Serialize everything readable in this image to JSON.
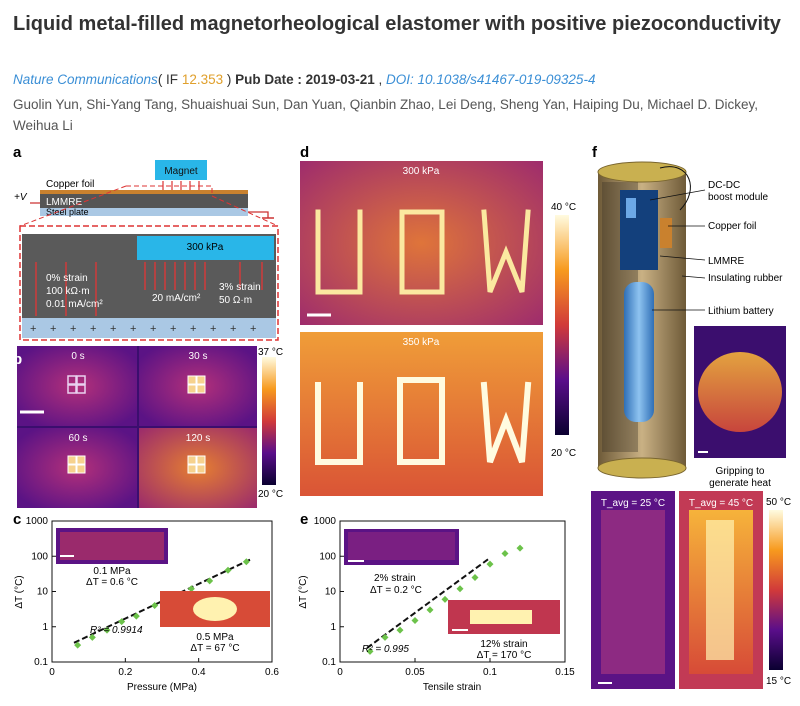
{
  "article": {
    "title": "Liquid metal-filled magnetorheological elastomer with positive piezoconductivity",
    "journal": "Nature Communications",
    "if_open": "( IF ",
    "if_value": "12.353",
    "if_close": " )",
    "pub_date_label": "Pub Date :",
    "pub_date": "2019-03-21",
    "separator": ",",
    "doi_label": "DOI:",
    "doi": "10.1038/s41467-019-09325-4",
    "authors": "Guolin Yun, Shi-Yang Tang, Shuaishuai Sun, Dan Yuan, Qianbin Zhao, Lei Deng, Sheng Yan, Haiping Du, Michael D. Dickey, Weihua Li"
  },
  "figure": {
    "panel_a": {
      "label": "a",
      "magnet": "Magnet",
      "copper_foil": "Copper foil",
      "voltage": "+V",
      "lmmre": "LMMRE",
      "steel_plate": "Steel plate",
      "pressure": "300 kPa",
      "left_strain": "0% strain",
      "left_resistivity": "100 kΩ·m",
      "left_current": "0.01 mA/cm²",
      "mid_current": "20 mA/cm²",
      "right_strain": "3% strain",
      "right_resistivity": "50 Ω·m"
    },
    "panel_b": {
      "label": "b",
      "times": [
        "0 s",
        "30 s",
        "60 s",
        "120 s"
      ],
      "scale_max": "37 °C",
      "scale_min": "20 °C"
    },
    "panel_c": {
      "label": "c",
      "inset_top_pressure": "0.1 MPa",
      "inset_top_dt": "ΔT = 0.6 °C",
      "inset_bottom_pressure": "0.5 MPa",
      "inset_bottom_dt": "ΔT = 67 °C",
      "r2": "R² = 0.9914"
    },
    "panel_d": {
      "label": "d",
      "top_pressure": "300 kPa",
      "bottom_pressure": "350 kPa",
      "scale_max": "40 °C",
      "scale_min": "20 °C"
    },
    "panel_e": {
      "label": "e",
      "inset_top_strain": "2% strain",
      "inset_top_dt": "ΔT = 0.2 °C",
      "inset_bottom_strain": "12% strain",
      "inset_bottom_dt": "ΔT = 170 °C",
      "r2": "R² = 0.995"
    },
    "panel_f": {
      "label": "f",
      "labels": [
        "DC-DC boost module",
        "Copper foil",
        "LMMRE",
        "Insulating rubber",
        "Lithium battery"
      ],
      "grip_caption": "Gripping to generate heat",
      "t_left": "T_avg = 25 °C",
      "t_right": "T_avg = 45 °C",
      "scale_max": "50 °C",
      "scale_min": "15 °C"
    }
  },
  "chart_data": [
    {
      "type": "scatter",
      "title": "",
      "xlabel": "Pressure (MPa)",
      "ylabel": "ΔT (°C)",
      "xlim": [
        0,
        0.6
      ],
      "ylim": [
        0.1,
        1000
      ],
      "yscale": "log",
      "xticks": [
        "0",
        "0.2",
        "0.4",
        "0.6"
      ],
      "yticks": [
        "0.1",
        "1",
        "10",
        "100",
        "1000"
      ],
      "x": [
        0.07,
        0.11,
        0.15,
        0.19,
        0.23,
        0.28,
        0.33,
        0.38,
        0.43,
        0.48,
        0.53
      ],
      "y": [
        0.3,
        0.5,
        0.8,
        1.4,
        2.0,
        4.0,
        6.0,
        12,
        20,
        40,
        70
      ],
      "fit": {
        "x": [
          0.06,
          0.54
        ],
        "y": [
          0.35,
          80
        ]
      }
    },
    {
      "type": "scatter",
      "title": "",
      "xlabel": "Tensile strain",
      "ylabel": "ΔT (°C)",
      "xlim": [
        0,
        0.15
      ],
      "ylim": [
        0.1,
        1000
      ],
      "yscale": "log",
      "xticks": [
        "0",
        "0.05",
        "0.1",
        "0.15"
      ],
      "yticks": [
        "0.1",
        "1",
        "10",
        "100",
        "1000"
      ],
      "x": [
        0.02,
        0.03,
        0.04,
        0.05,
        0.06,
        0.07,
        0.08,
        0.09,
        0.1,
        0.11,
        0.12
      ],
      "y": [
        0.2,
        0.5,
        0.8,
        1.5,
        3,
        6,
        12,
        25,
        60,
        120,
        170
      ],
      "fit": {
        "x": [
          0.018,
          0.1
        ],
        "y": [
          0.25,
          90
        ]
      }
    }
  ]
}
